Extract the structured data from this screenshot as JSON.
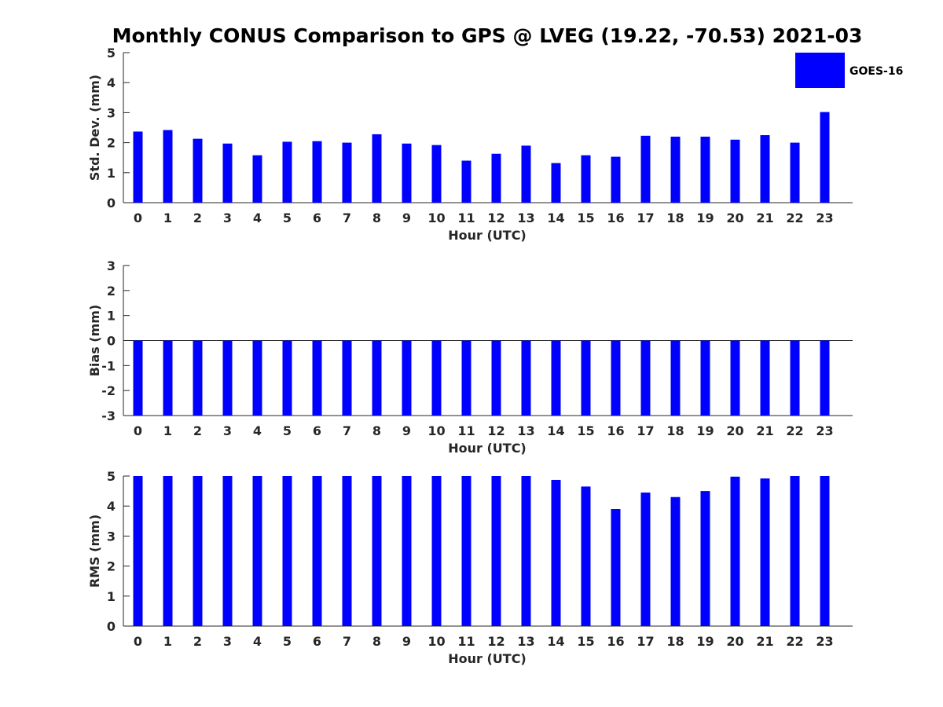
{
  "chart_data": {
    "title": "Monthly CONUS Comparison to GPS @ LVEG (19.22, -70.53) 2021-03",
    "legend": {
      "label": "GOES-16",
      "color": "#0000ff",
      "placement": "top-right"
    },
    "bar_color": "#0000ff",
    "panels": [
      {
        "type": "bar",
        "name": "std-dev",
        "xlabel": "Hour (UTC)",
        "ylabel": "Std. Dev. (mm)",
        "ylim": [
          0,
          5
        ],
        "yticks": [
          0,
          1,
          2,
          3,
          4,
          5
        ],
        "categories": [
          "0",
          "1",
          "2",
          "3",
          "4",
          "5",
          "6",
          "7",
          "8",
          "9",
          "10",
          "11",
          "12",
          "13",
          "14",
          "15",
          "16",
          "17",
          "18",
          "19",
          "20",
          "21",
          "22",
          "23"
        ],
        "series": [
          {
            "name": "GOES-16",
            "values": [
              2.37,
              2.42,
              2.13,
              1.97,
              1.58,
              2.03,
              2.05,
              2.0,
              2.28,
              1.97,
              1.92,
              1.4,
              1.63,
              1.9,
              1.32,
              1.58,
              1.53,
              2.23,
              2.2,
              2.2,
              2.1,
              2.25,
              2.0,
              3.02
            ]
          }
        ]
      },
      {
        "type": "bar",
        "name": "bias",
        "xlabel": "Hour (UTC)",
        "ylabel": "Bias (mm)",
        "ylim": [
          -3,
          3
        ],
        "yticks": [
          -3,
          -2,
          -1,
          0,
          1,
          2,
          3
        ],
        "categories": [
          "0",
          "1",
          "2",
          "3",
          "4",
          "5",
          "6",
          "7",
          "8",
          "9",
          "10",
          "11",
          "12",
          "13",
          "14",
          "15",
          "16",
          "17",
          "18",
          "19",
          "20",
          "21",
          "22",
          "23"
        ],
        "series": [
          {
            "name": "GOES-16",
            "values": [
              -3,
              -3,
              -3,
              -3,
              -3,
              -3,
              -3,
              -3,
              -3,
              -3,
              -3,
              -3,
              -3,
              -3,
              -3,
              -3,
              -3,
              -3,
              -3,
              -3,
              -3,
              -3,
              -3,
              -3
            ]
          }
        ]
      },
      {
        "type": "bar",
        "name": "rms",
        "xlabel": "Hour (UTC)",
        "ylabel": "RMS (mm)",
        "ylim": [
          0,
          5
        ],
        "yticks": [
          0,
          1,
          2,
          3,
          4,
          5
        ],
        "categories": [
          "0",
          "1",
          "2",
          "3",
          "4",
          "5",
          "6",
          "7",
          "8",
          "9",
          "10",
          "11",
          "12",
          "13",
          "14",
          "15",
          "16",
          "17",
          "18",
          "19",
          "20",
          "21",
          "22",
          "23"
        ],
        "series": [
          {
            "name": "GOES-16",
            "values": [
              5,
              5,
              5,
              5,
              5,
              5,
              5,
              5,
              5,
              5,
              5,
              5,
              5,
              5,
              4.87,
              4.65,
              3.9,
              4.45,
              4.3,
              4.5,
              4.98,
              4.92,
              5,
              5
            ]
          }
        ]
      }
    ]
  }
}
